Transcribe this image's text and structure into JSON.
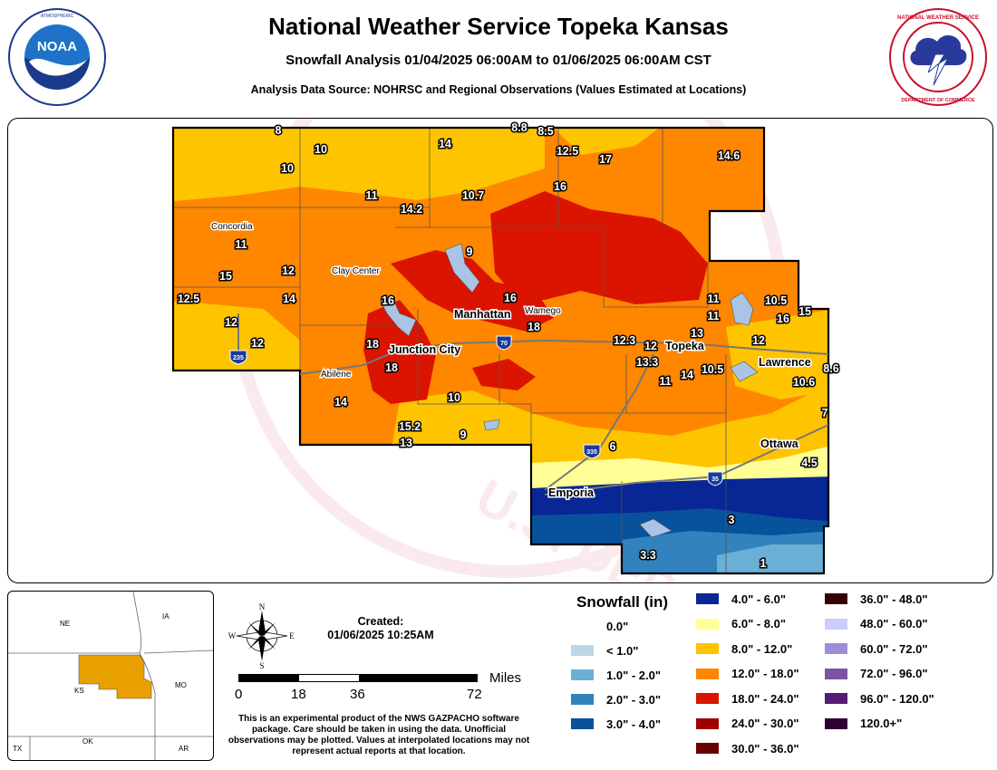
{
  "header": {
    "title": "National Weather Service Topeka Kansas",
    "subtitle": "Snowfall Analysis 01/04/2025 06:00AM to 01/06/2025 06:00AM CST",
    "source": "Analysis Data Source: NOHRSC and Regional Observations (Values Estimated at Locations)"
  },
  "logos": {
    "noaa_text": "NOAA",
    "noaa_ring": "NATIONAL OCEANIC AND ATMOSPHERIC ADMINISTRATION · U.S. DEPARTMENT OF COMMERCE",
    "nws_ring": "NATIONAL WEATHER SERVICE · U.S. DEPARTMENT OF COMMERCE"
  },
  "watermark": "U.S. DEPARTMENT OF",
  "cities": {
    "concordia": "Concordia",
    "clay_center": "Clay Center",
    "manhattan": "Manhattan",
    "wamego": "Wamego",
    "junction_city": "Junction City",
    "abilene": "Abilene",
    "topeka": "Topeka",
    "lawrence": "Lawrence",
    "ottawa": "Ottawa",
    "emporia": "Emporia"
  },
  "highways": {
    "i70": "70",
    "i335": "335",
    "i35": "35",
    "i235": "235"
  },
  "values": [
    "8",
    "8.8",
    "8.5",
    "10",
    "14",
    "12.5",
    "17",
    "14.6",
    "10",
    "16",
    "11",
    "10.7",
    "14.2",
    "11",
    "9",
    "12",
    "15",
    "14",
    "12.5",
    "12",
    "12",
    "16",
    "16",
    "18",
    "18",
    "18",
    "10",
    "9",
    "15.2",
    "13",
    "14",
    "11",
    "11",
    "10.5",
    "16",
    "15",
    "13",
    "12.3",
    "12",
    "13.3",
    "11",
    "14",
    "10.5",
    "12",
    "8.6",
    "10.6",
    "7",
    "6",
    "4.5",
    "3",
    "3.3",
    "1"
  ],
  "created": {
    "label": "Created:",
    "datetime": "01/06/2025 10:25AM"
  },
  "compass": {
    "n": "N",
    "s": "S",
    "e": "E",
    "w": "W"
  },
  "scale": {
    "unit": "Miles",
    "ticks": [
      "0",
      "18",
      "36",
      "72"
    ]
  },
  "note": "This is an experimental product of the NWS GAZPACHO software package. Care should be taken in using the data. Unofficial observations may be plotted. Values at interpolated locations may not represent actual reports at that location.",
  "inset": {
    "ne": "NE",
    "ia": "IA",
    "ks": "KS",
    "mo": "MO",
    "ok": "OK",
    "ar": "AR",
    "tx": "TX"
  },
  "legend": {
    "title": "Snowfall (in)",
    "items": [
      {
        "label": "0.0\"",
        "color": "#ffffff"
      },
      {
        "label": "< 1.0\"",
        "color": "#bdd7e7"
      },
      {
        "label": "1.0\" - 2.0\"",
        "color": "#6baed6"
      },
      {
        "label": "2.0\" - 3.0\"",
        "color": "#3182bd"
      },
      {
        "label": "3.0\" - 4.0\"",
        "color": "#08519c"
      },
      {
        "label": "4.0\" - 6.0\"",
        "color": "#082694"
      },
      {
        "label": "6.0\" - 8.0\"",
        "color": "#ffff96"
      },
      {
        "label": "8.0\" - 12.0\"",
        "color": "#ffc400"
      },
      {
        "label": "12.0\" - 18.0\"",
        "color": "#ff8700"
      },
      {
        "label": "18.0\" - 24.0\"",
        "color": "#db1400"
      },
      {
        "label": "24.0\" - 30.0\"",
        "color": "#9e0000"
      },
      {
        "label": "30.0\" - 36.0\"",
        "color": "#690000"
      },
      {
        "label": "36.0\" - 48.0\"",
        "color": "#360000"
      },
      {
        "label": "48.0\" - 60.0\"",
        "color": "#ccccff"
      },
      {
        "label": "60.0\" - 72.0\"",
        "color": "#9f8cd8"
      },
      {
        "label": "72.0\" - 96.0\"",
        "color": "#7c52a5"
      },
      {
        "label": "96.0\" - 120.0\"",
        "color": "#561c72"
      },
      {
        "label": "120.0+\"",
        "color": "#2e0033"
      }
    ]
  }
}
